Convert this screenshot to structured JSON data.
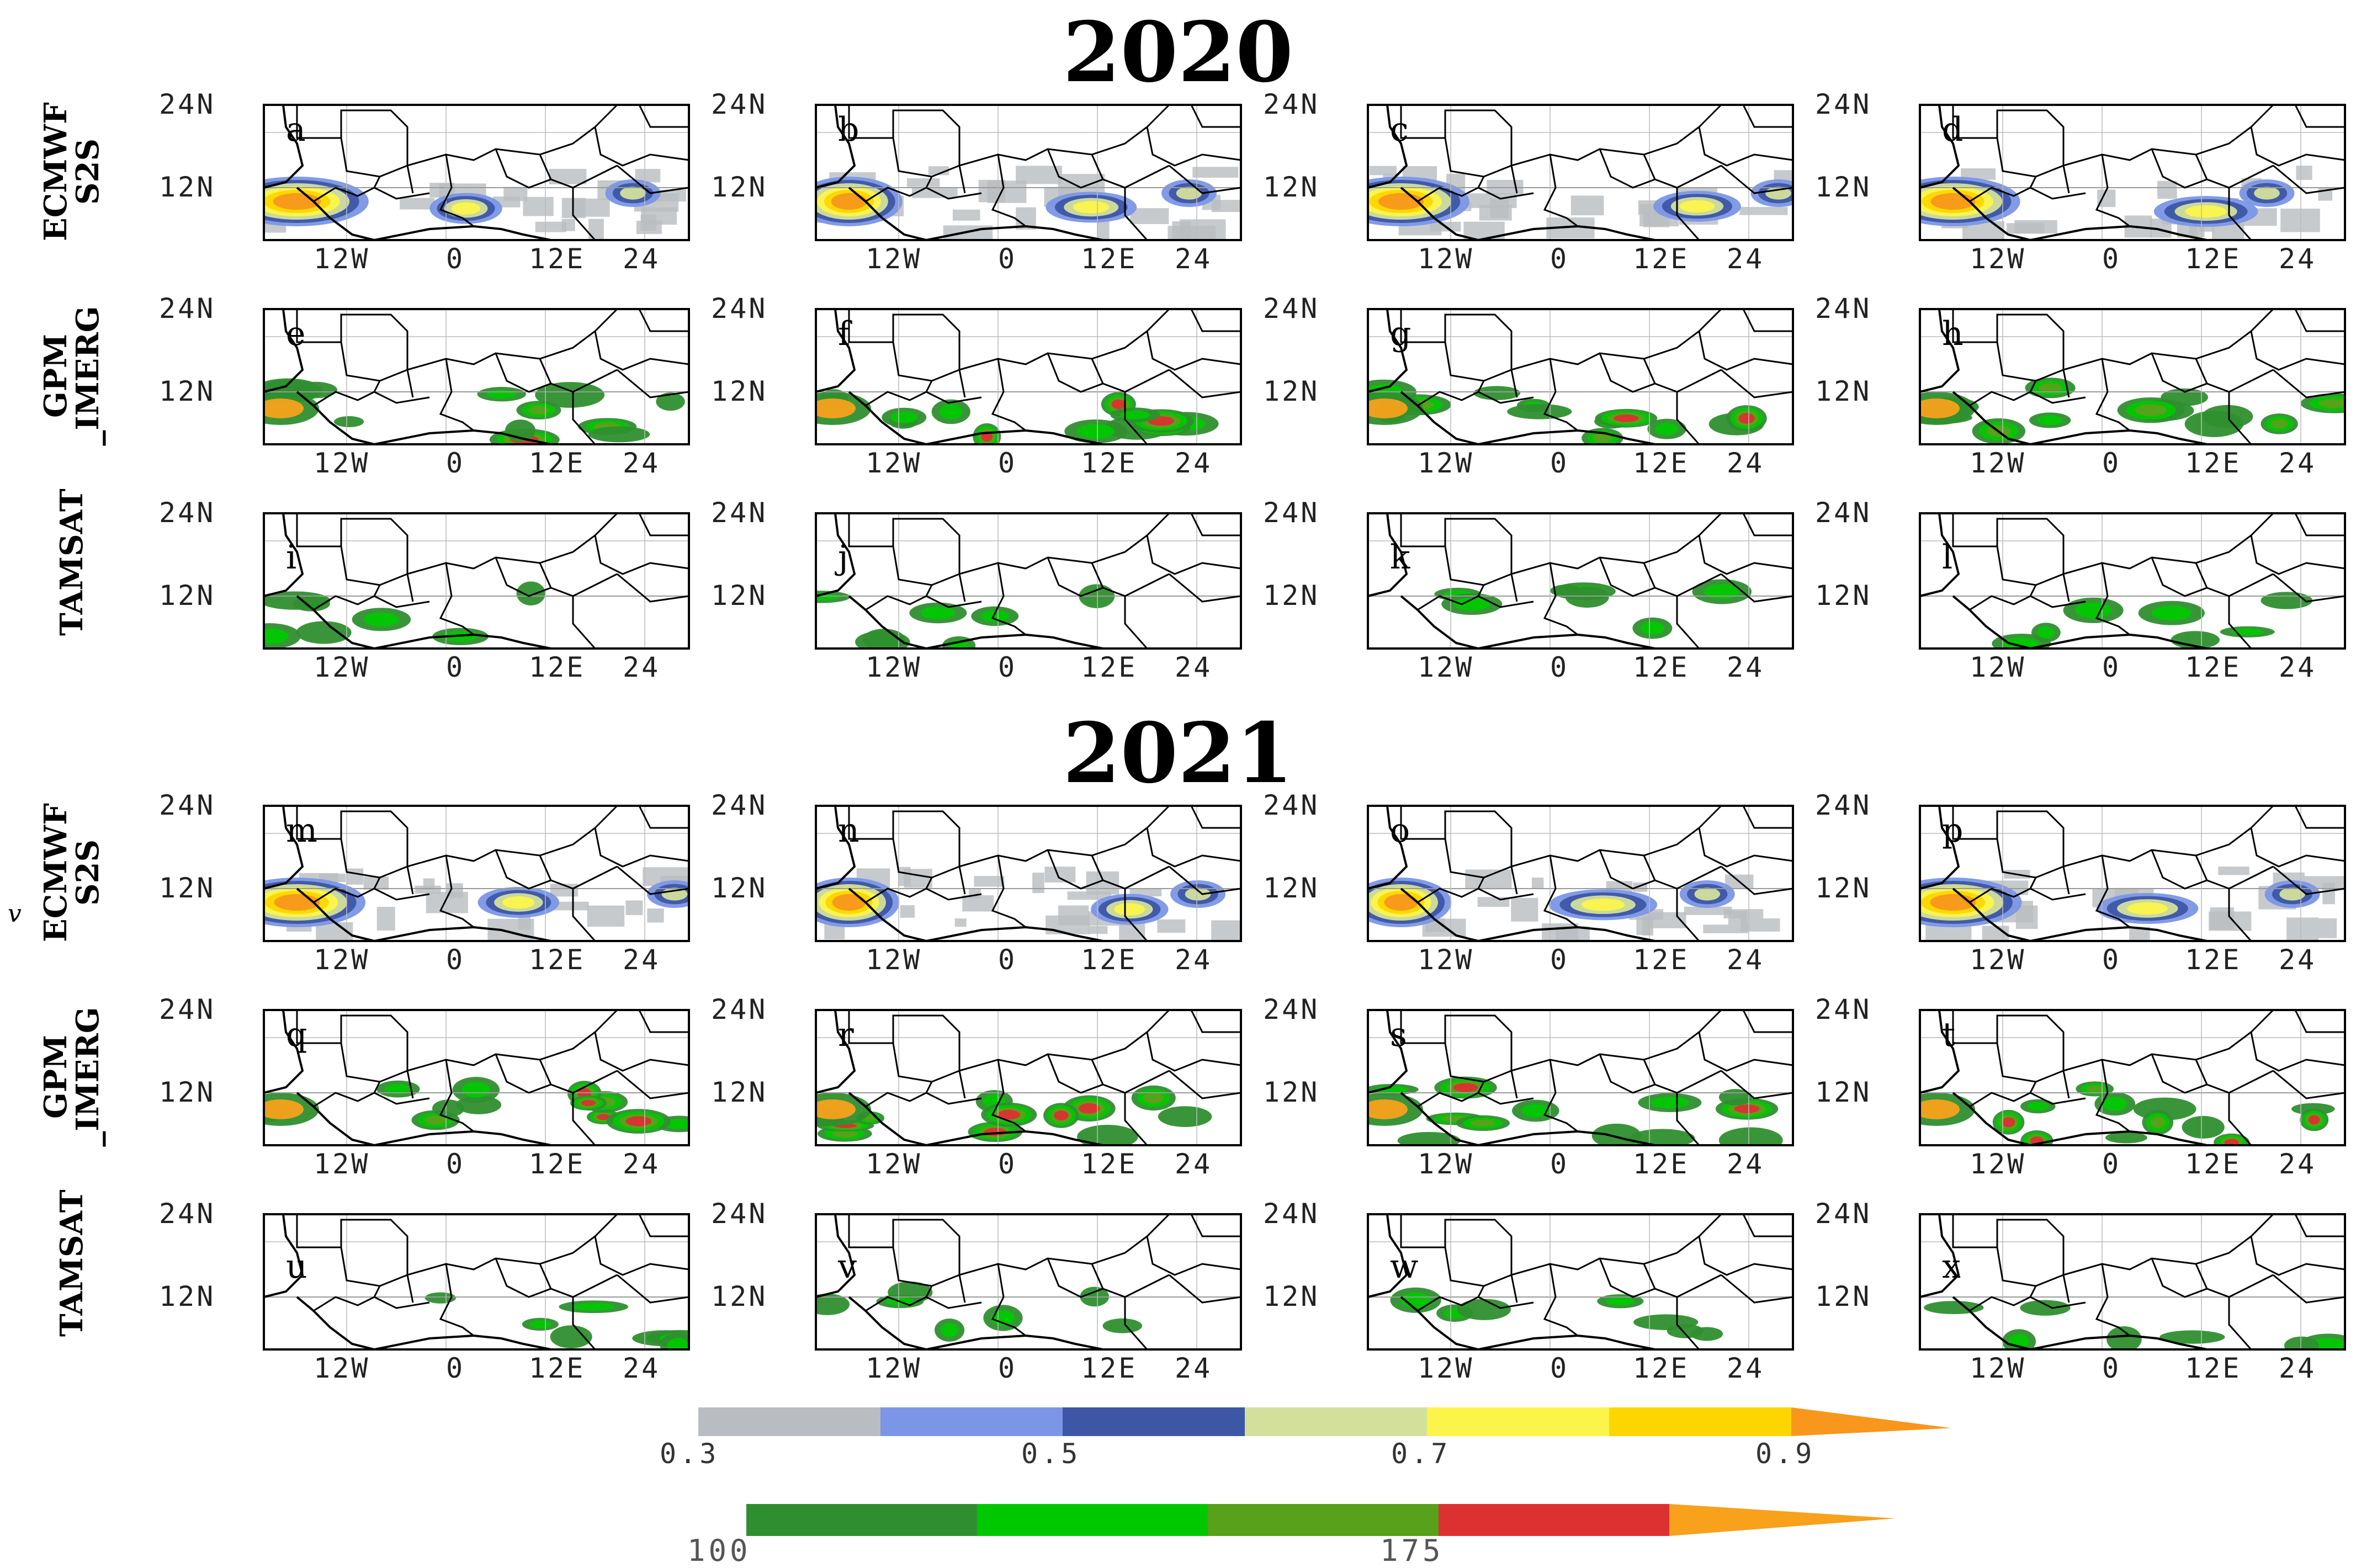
{
  "years": [
    "2020",
    "2021"
  ],
  "row_labels": [
    "ECMWF\nS2S",
    "GPM\n_IMERG",
    "TAMSAT"
  ],
  "panel_letters": [
    "a",
    "b",
    "c",
    "d",
    "e",
    "f",
    "g",
    "h",
    "i",
    "j",
    "k",
    "l",
    "m",
    "n",
    "o",
    "p",
    "q",
    "r",
    "s",
    "t",
    "u",
    "v",
    "w",
    "x"
  ],
  "axis": {
    "y_ticks": [
      "24N",
      "12N"
    ],
    "x_ticks": [
      "12W",
      "0",
      "12E",
      "24"
    ]
  },
  "stray_mark": "v",
  "colorbar_probability": {
    "colors": [
      "#b9bdc1",
      "#7b96e6",
      "#3d56a6",
      "#d3e09b",
      "#fbf54b",
      "#fdd600",
      "#f8971b"
    ],
    "tick_labels": [
      "0.3",
      "0.5",
      "0.7",
      "0.9"
    ]
  },
  "colorbar_rainfall": {
    "colors": [
      "#2f8f2f",
      "#00c800",
      "#58a11b",
      "#dd3030",
      "#f8a11b"
    ],
    "tick_labels": [
      "100",
      "175"
    ]
  }
}
